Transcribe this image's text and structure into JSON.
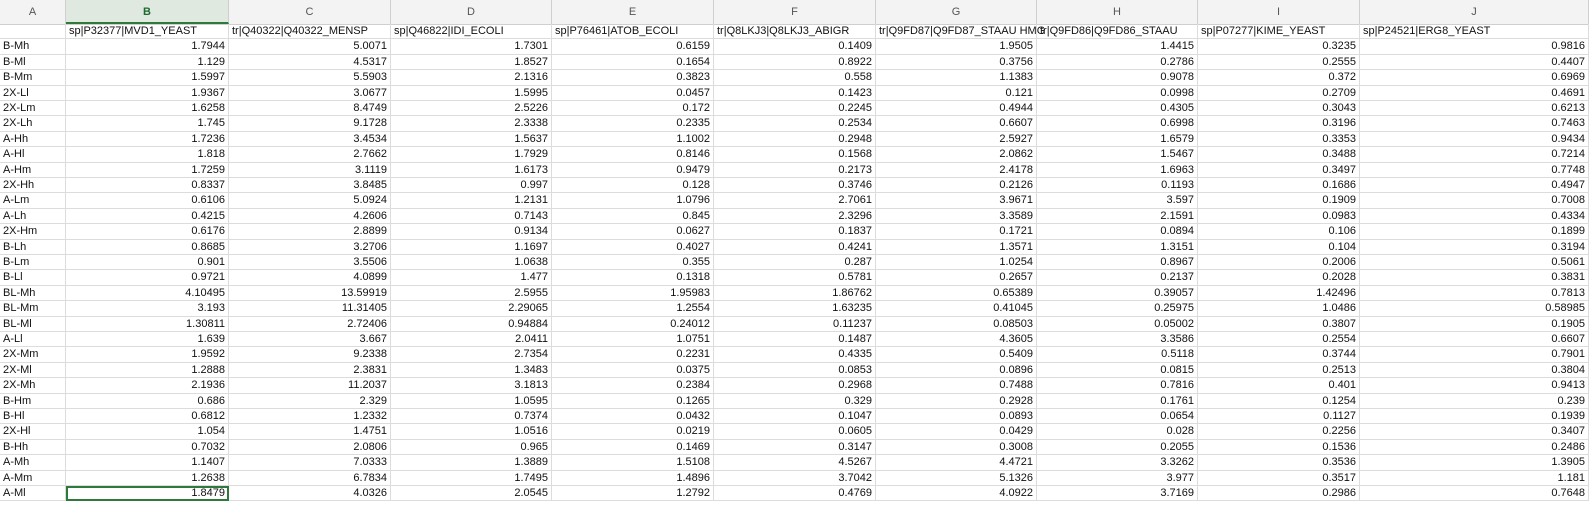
{
  "columns": [
    "A",
    "B",
    "C",
    "D",
    "E",
    "F",
    "G",
    "H",
    "I",
    "J"
  ],
  "selected_column": "B",
  "header_labels": [
    "",
    "sp|P32377|MVD1_YEAST",
    "tr|Q40322|Q40322_MENSP",
    "sp|Q46822|IDI_ECOLI",
    "sp|P76461|ATOB_ECOLI",
    "tr|Q8LKJ3|Q8LKJ3_ABIGR",
    "tr|Q9FD87|Q9FD87_STAAU HMG",
    "tr|Q9FD86|Q9FD86_STAAU",
    "sp|P07277|KIME_YEAST",
    "sp|P24521|ERG8_YEAST"
  ],
  "rows": [
    [
      "B-Mh",
      "1.7944",
      "5.0071",
      "1.7301",
      "0.6159",
      "0.1409",
      "1.9505",
      "1.4415",
      "0.3235",
      "0.9816"
    ],
    [
      "B-Ml",
      "1.129",
      "4.5317",
      "1.8527",
      "0.1654",
      "0.8922",
      "0.3756",
      "0.2786",
      "0.2555",
      "0.4407"
    ],
    [
      "B-Mm",
      "1.5997",
      "5.5903",
      "2.1316",
      "0.3823",
      "0.558",
      "1.1383",
      "0.9078",
      "0.372",
      "0.6969"
    ],
    [
      "2X-Ll",
      "1.9367",
      "3.0677",
      "1.5995",
      "0.0457",
      "0.1423",
      "0.121",
      "0.0998",
      "0.2709",
      "0.4691"
    ],
    [
      "2X-Lm",
      "1.6258",
      "8.4749",
      "2.5226",
      "0.172",
      "0.2245",
      "0.4944",
      "0.4305",
      "0.3043",
      "0.6213"
    ],
    [
      "2X-Lh",
      "1.745",
      "9.1728",
      "2.3338",
      "0.2335",
      "0.2534",
      "0.6607",
      "0.6998",
      "0.3196",
      "0.7463"
    ],
    [
      "A-Hh",
      "1.7236",
      "3.4534",
      "1.5637",
      "1.1002",
      "0.2948",
      "2.5927",
      "1.6579",
      "0.3353",
      "0.9434"
    ],
    [
      "A-Hl",
      "1.818",
      "2.7662",
      "1.7929",
      "0.8146",
      "0.1568",
      "2.0862",
      "1.5467",
      "0.3488",
      "0.7214"
    ],
    [
      "A-Hm",
      "1.7259",
      "3.1119",
      "1.6173",
      "0.9479",
      "0.2173",
      "2.4178",
      "1.6963",
      "0.3497",
      "0.7748"
    ],
    [
      "2X-Hh",
      "0.8337",
      "3.8485",
      "0.997",
      "0.128",
      "0.3746",
      "0.2126",
      "0.1193",
      "0.1686",
      "0.4947"
    ],
    [
      "A-Lm",
      "0.6106",
      "5.0924",
      "1.2131",
      "1.0796",
      "2.7061",
      "3.9671",
      "3.597",
      "0.1909",
      "0.7008"
    ],
    [
      "A-Lh",
      "0.4215",
      "4.2606",
      "0.7143",
      "0.845",
      "2.3296",
      "3.3589",
      "2.1591",
      "0.0983",
      "0.4334"
    ],
    [
      "2X-Hm",
      "0.6176",
      "2.8899",
      "0.9134",
      "0.0627",
      "0.1837",
      "0.1721",
      "0.0894",
      "0.106",
      "0.1899"
    ],
    [
      "B-Lh",
      "0.8685",
      "3.2706",
      "1.1697",
      "0.4027",
      "0.4241",
      "1.3571",
      "1.3151",
      "0.104",
      "0.3194"
    ],
    [
      "B-Lm",
      "0.901",
      "3.5506",
      "1.0638",
      "0.355",
      "0.287",
      "1.0254",
      "0.8967",
      "0.2006",
      "0.5061"
    ],
    [
      "B-Ll",
      "0.9721",
      "4.0899",
      "1.477",
      "0.1318",
      "0.5781",
      "0.2657",
      "0.2137",
      "0.2028",
      "0.3831"
    ],
    [
      "BL-Mh",
      "4.10495",
      "13.59919",
      "2.5955",
      "1.95983",
      "1.86762",
      "0.65389",
      "0.39057",
      "1.42496",
      "0.7813"
    ],
    [
      "BL-Mm",
      "3.193",
      "11.31405",
      "2.29065",
      "1.2554",
      "1.63235",
      "0.41045",
      "0.25975",
      "1.0486",
      "0.58985"
    ],
    [
      "BL-Ml",
      "1.30811",
      "2.72406",
      "0.94884",
      "0.24012",
      "0.11237",
      "0.08503",
      "0.05002",
      "0.3807",
      "0.1905"
    ],
    [
      "A-Ll",
      "1.639",
      "3.667",
      "2.0411",
      "1.0751",
      "0.1487",
      "4.3605",
      "3.3586",
      "0.2554",
      "0.6607"
    ],
    [
      "2X-Mm",
      "1.9592",
      "9.2338",
      "2.7354",
      "0.2231",
      "0.4335",
      "0.5409",
      "0.5118",
      "0.3744",
      "0.7901"
    ],
    [
      "2X-Ml",
      "1.2888",
      "2.3831",
      "1.3483",
      "0.0375",
      "0.0853",
      "0.0896",
      "0.0815",
      "0.2513",
      "0.3804"
    ],
    [
      "2X-Mh",
      "2.1936",
      "11.2037",
      "3.1813",
      "0.2384",
      "0.2968",
      "0.7488",
      "0.7816",
      "0.401",
      "0.9413"
    ],
    [
      "B-Hm",
      "0.686",
      "2.329",
      "1.0595",
      "0.1265",
      "0.329",
      "0.2928",
      "0.1761",
      "0.1254",
      "0.239"
    ],
    [
      "B-Hl",
      "0.6812",
      "1.2332",
      "0.7374",
      "0.0432",
      "0.1047",
      "0.0893",
      "0.0654",
      "0.1127",
      "0.1939"
    ],
    [
      "2X-Hl",
      "1.054",
      "1.4751",
      "1.0516",
      "0.0219",
      "0.0605",
      "0.0429",
      "0.028",
      "0.2256",
      "0.3407"
    ],
    [
      "B-Hh",
      "0.7032",
      "2.0806",
      "0.965",
      "0.1469",
      "0.3147",
      "0.3008",
      "0.2055",
      "0.1536",
      "0.2486"
    ],
    [
      "A-Mh",
      "1.1407",
      "7.0333",
      "1.3889",
      "1.5108",
      "4.5267",
      "4.4721",
      "3.3262",
      "0.3536",
      "1.3905"
    ],
    [
      "A-Mm",
      "1.2638",
      "6.7834",
      "1.7495",
      "1.4896",
      "3.7042",
      "5.1326",
      "3.977",
      "0.3517",
      "1.181"
    ],
    [
      "A-Ml",
      "1.8479",
      "4.0326",
      "2.0545",
      "1.2792",
      "0.4769",
      "4.0922",
      "3.7169",
      "0.2986",
      "0.7648"
    ]
  ]
}
